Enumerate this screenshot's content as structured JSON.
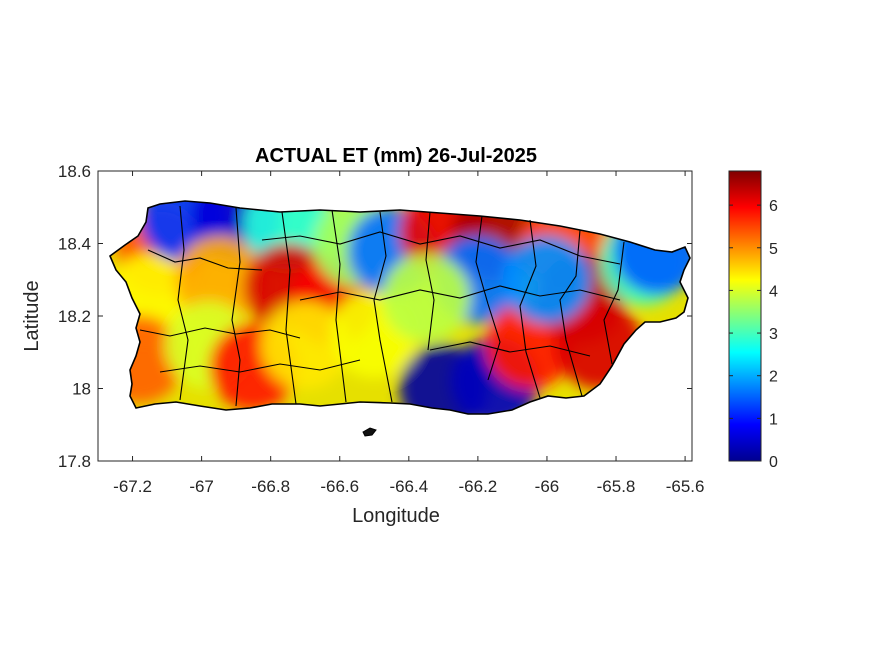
{
  "chart_data": {
    "type": "heatmap",
    "title": "ACTUAL ET (mm) 26-Jul-2025",
    "xlabel": "Longitude",
    "ylabel": "Latitude",
    "xlim": [
      -67.3,
      -65.58
    ],
    "ylim": [
      17.8,
      18.6
    ],
    "x_ticks": [
      -67.2,
      -67,
      -66.8,
      -66.6,
      -66.4,
      -66.2,
      -66,
      -65.8,
      -65.6
    ],
    "x_tick_labels": [
      "-67.2",
      "-67",
      "-66.8",
      "-66.6",
      "-66.4",
      "-66.2",
      "-66",
      "-65.8",
      "-65.6"
    ],
    "y_ticks": [
      17.8,
      18,
      18.2,
      18.4,
      18.6
    ],
    "y_tick_labels": [
      "17.8",
      "18",
      "18.2",
      "18.4",
      "18.6"
    ],
    "colorbar": {
      "colormap": "jet",
      "range": [
        0,
        6.8
      ],
      "ticks": [
        0,
        1,
        2,
        3,
        4,
        5,
        6
      ],
      "tick_labels": [
        "0",
        "1",
        "2",
        "3",
        "4",
        "5",
        "6"
      ]
    },
    "grid": false,
    "regions": [
      {
        "lon": -67.12,
        "lat": 18.38,
        "et": 5.4
      },
      {
        "lon": -67.15,
        "lat": 18.25,
        "et": 4.3
      },
      {
        "lon": -67.18,
        "lat": 18.08,
        "et": 5.3
      },
      {
        "lon": -67.05,
        "lat": 18.47,
        "et": 1.2
      },
      {
        "lon": -66.9,
        "lat": 18.47,
        "et": 0.6
      },
      {
        "lon": -66.75,
        "lat": 18.45,
        "et": 2.8
      },
      {
        "lon": -66.95,
        "lat": 18.3,
        "et": 4.8
      },
      {
        "lon": -66.75,
        "lat": 18.28,
        "et": 6.2
      },
      {
        "lon": -66.62,
        "lat": 18.24,
        "et": 6.0
      },
      {
        "lon": -66.98,
        "lat": 18.12,
        "et": 4.0
      },
      {
        "lon": -66.85,
        "lat": 18.06,
        "et": 5.8
      },
      {
        "lon": -66.7,
        "lat": 18.12,
        "et": 4.4
      },
      {
        "lon": -66.55,
        "lat": 18.4,
        "et": 3.6
      },
      {
        "lon": -66.5,
        "lat": 18.15,
        "et": 4.2
      },
      {
        "lon": -66.45,
        "lat": 18.38,
        "et": 1.6
      },
      {
        "lon": -66.3,
        "lat": 18.43,
        "et": 6.1
      },
      {
        "lon": -66.15,
        "lat": 18.42,
        "et": 6.5
      },
      {
        "lon": -66.2,
        "lat": 18.3,
        "et": 1.6
      },
      {
        "lon": -66.35,
        "lat": 18.25,
        "et": 3.8
      },
      {
        "lon": -66.3,
        "lat": 18.0,
        "et": 0.2
      },
      {
        "lon": -66.15,
        "lat": 18.02,
        "et": 0.4
      },
      {
        "lon": -66.05,
        "lat": 18.12,
        "et": 5.8
      },
      {
        "lon": -65.95,
        "lat": 18.4,
        "et": 5.5
      },
      {
        "lon": -65.9,
        "lat": 18.25,
        "et": 6.4
      },
      {
        "lon": -65.85,
        "lat": 18.12,
        "et": 6.2
      },
      {
        "lon": -65.72,
        "lat": 18.35,
        "et": 3.0
      },
      {
        "lon": -65.68,
        "lat": 18.38,
        "et": 1.5
      },
      {
        "lon": -66.0,
        "lat": 18.3,
        "et": 1.8
      }
    ]
  }
}
